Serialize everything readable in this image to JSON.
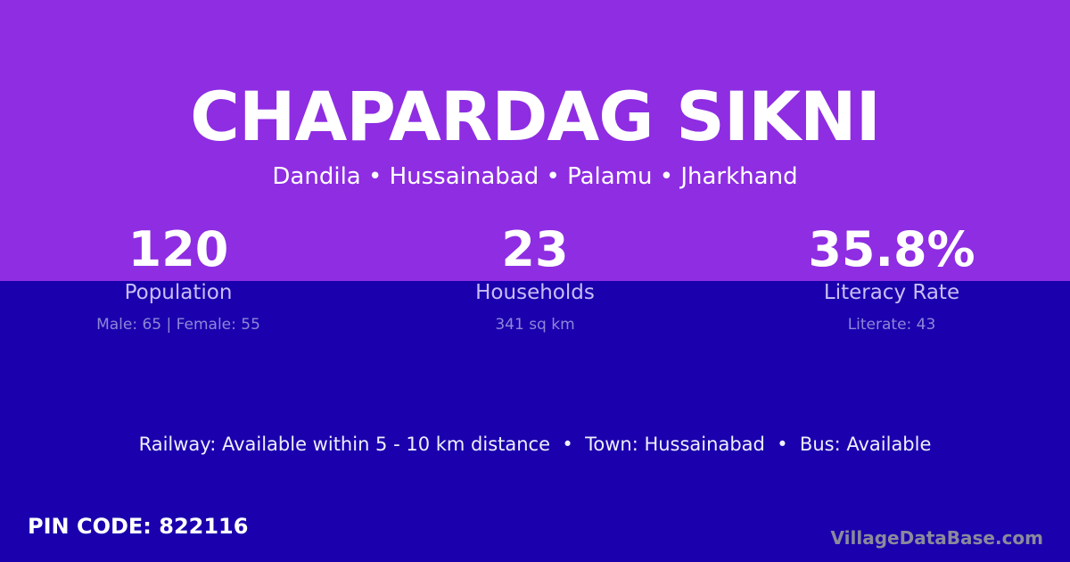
{
  "village": {
    "name": "CHAPARDAG SIKNI",
    "location": "Dandila • Hussainabad • Palamu • Jharkhand"
  },
  "stats": [
    {
      "value": "120",
      "label": "Population",
      "detail": "Male: 65 | Female: 55"
    },
    {
      "value": "23",
      "label": "Households",
      "detail": "341 sq km"
    },
    {
      "value": "35.8%",
      "label": "Literacy Rate",
      "detail": "Literate: 43"
    }
  ],
  "transport": "Railway: Available within 5 - 10 km distance  •  Town: Hussainabad  •  Bus: Available",
  "pin": "PIN CODE: 822116",
  "brand": "VillageDataBase.com",
  "colors": {
    "top": "#8e2de2",
    "bottom": "#1a01ad"
  }
}
